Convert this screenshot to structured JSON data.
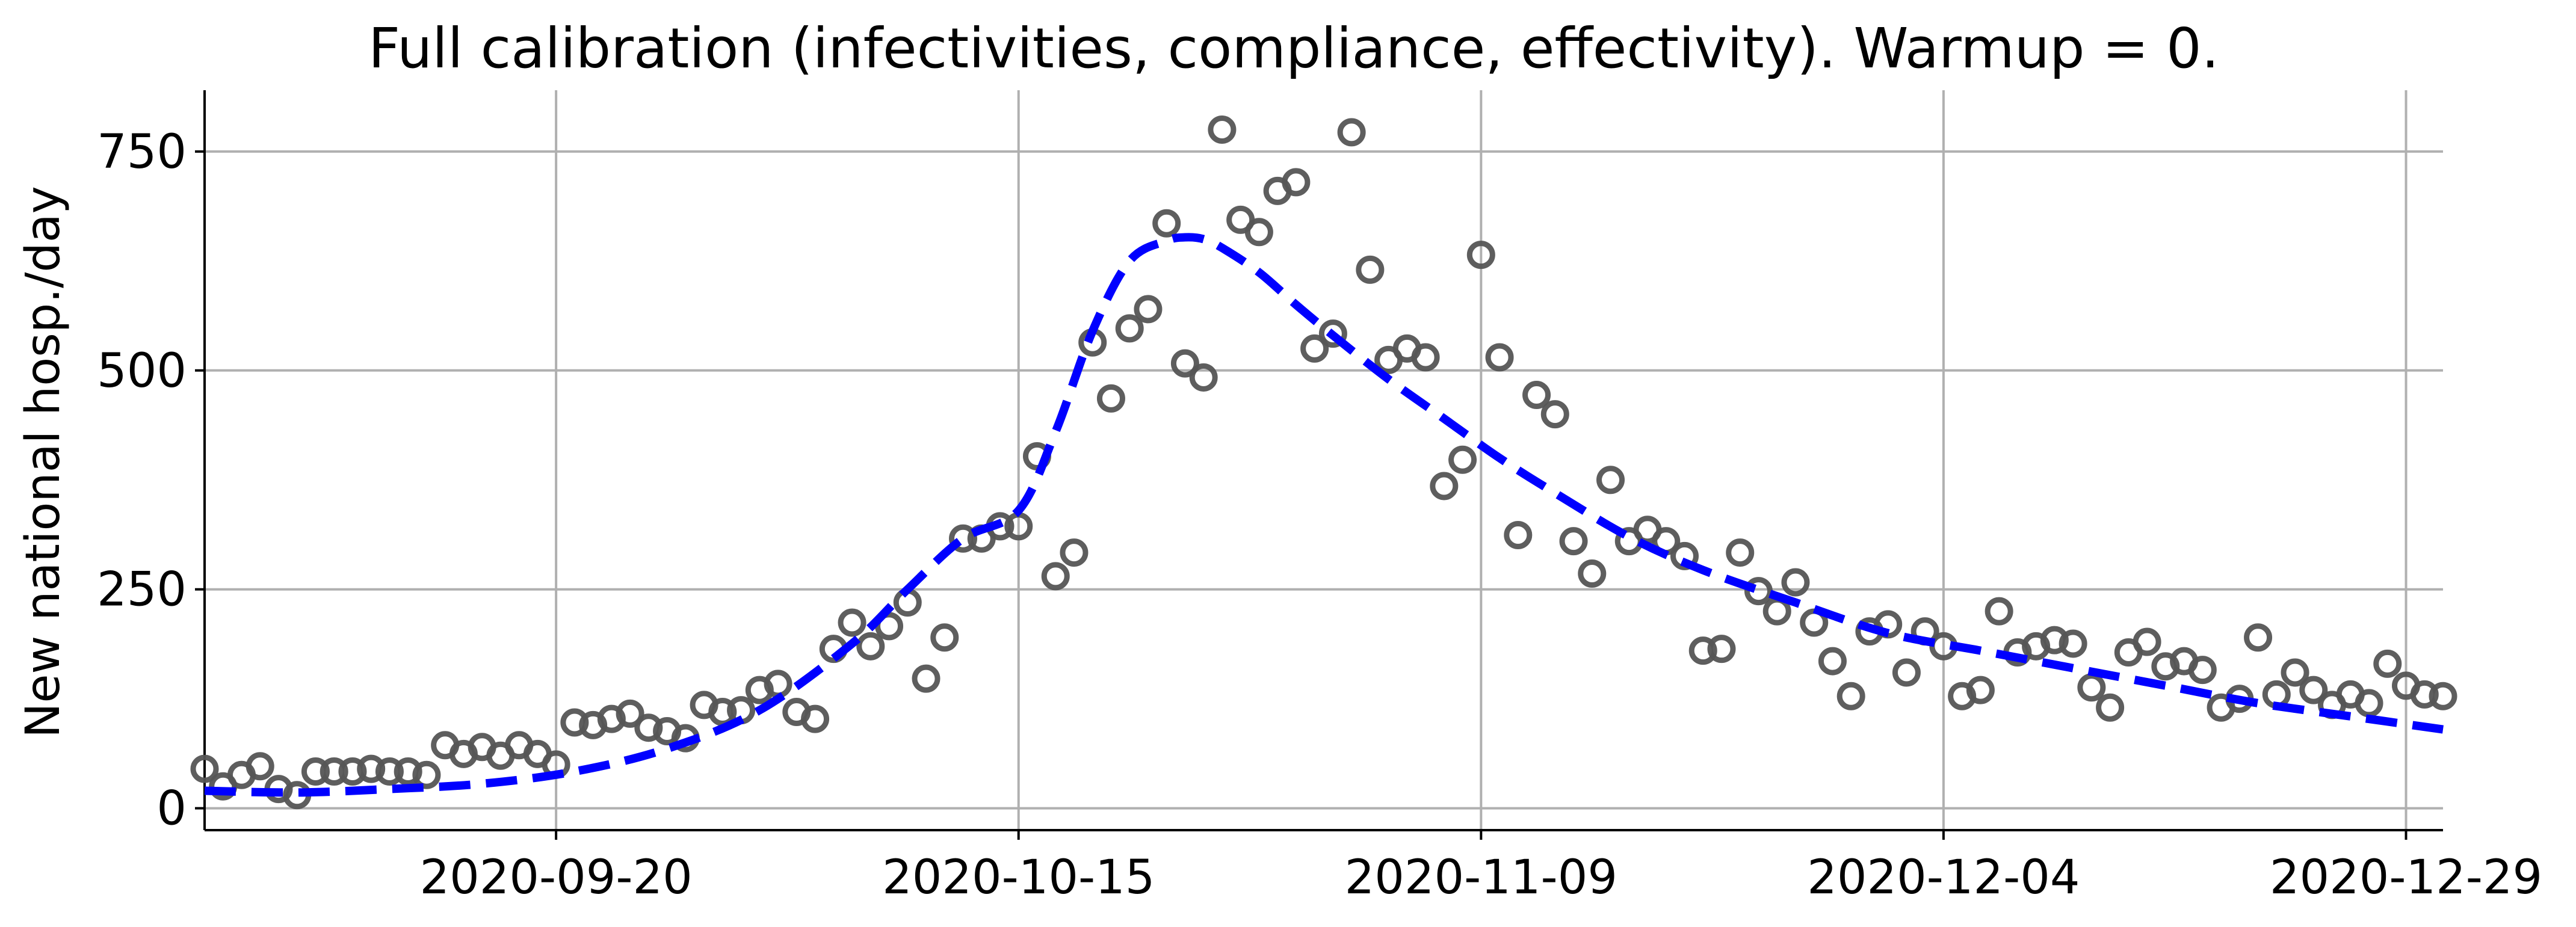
{
  "chart_data": {
    "type": "scatter",
    "title": "Full calibration (infectivities, compliance, effectivity). Warmup = 0.",
    "xlabel": "",
    "ylabel": "New national hosp./day",
    "x_range": [
      "2020-09-01",
      "2020-12-31"
    ],
    "ylim": [
      -25,
      820
    ],
    "x_ticks": [
      "2020-09-20",
      "2020-10-15",
      "2020-11-09",
      "2020-12-04",
      "2020-12-29"
    ],
    "y_ticks": [
      0,
      250,
      500,
      750
    ],
    "grid": true,
    "colors": {
      "observed": "#555555",
      "model": "#0000ff"
    },
    "series": [
      {
        "marker": "open-circle",
        "x": [
          "2020-09-01",
          "2020-09-02",
          "2020-09-03",
          "2020-09-04",
          "2020-09-05",
          "2020-09-06",
          "2020-09-07",
          "2020-09-08",
          "2020-09-09",
          "2020-09-10",
          "2020-09-11",
          "2020-09-12",
          "2020-09-13",
          "2020-09-14",
          "2020-09-15",
          "2020-09-16",
          "2020-09-17",
          "2020-09-18",
          "2020-09-19",
          "2020-09-20",
          "2020-09-21",
          "2020-09-22",
          "2020-09-23",
          "2020-09-24",
          "2020-09-25",
          "2020-09-26",
          "2020-09-27",
          "2020-09-28",
          "2020-09-29",
          "2020-09-30",
          "2020-10-01",
          "2020-10-02",
          "2020-10-03",
          "2020-10-04",
          "2020-10-05",
          "2020-10-06",
          "2020-10-07",
          "2020-10-08",
          "2020-10-09",
          "2020-10-10",
          "2020-10-11",
          "2020-10-12",
          "2020-10-13",
          "2020-10-14",
          "2020-10-15",
          "2020-10-16",
          "2020-10-17",
          "2020-10-18",
          "2020-10-19",
          "2020-10-20",
          "2020-10-21",
          "2020-10-22",
          "2020-10-23",
          "2020-10-24",
          "2020-10-25",
          "2020-10-26",
          "2020-10-27",
          "2020-10-28",
          "2020-10-29",
          "2020-10-30",
          "2020-10-31",
          "2020-11-01",
          "2020-11-02",
          "2020-11-03",
          "2020-11-04",
          "2020-11-05",
          "2020-11-06",
          "2020-11-07",
          "2020-11-08",
          "2020-11-09",
          "2020-11-10",
          "2020-11-11",
          "2020-11-12",
          "2020-11-13",
          "2020-11-14",
          "2020-11-15",
          "2020-11-16",
          "2020-11-17",
          "2020-11-18",
          "2020-11-19",
          "2020-11-20",
          "2020-11-21",
          "2020-11-22",
          "2020-11-23",
          "2020-11-24",
          "2020-11-25",
          "2020-11-26",
          "2020-11-27",
          "2020-11-28",
          "2020-11-29",
          "2020-11-30",
          "2020-12-01",
          "2020-12-02",
          "2020-12-03",
          "2020-12-04",
          "2020-12-05",
          "2020-12-06",
          "2020-12-07",
          "2020-12-08",
          "2020-12-09",
          "2020-12-10",
          "2020-12-11",
          "2020-12-12",
          "2020-12-13",
          "2020-12-14",
          "2020-12-15",
          "2020-12-16",
          "2020-12-17",
          "2020-12-18",
          "2020-12-19",
          "2020-12-20",
          "2020-12-21",
          "2020-12-22",
          "2020-12-23",
          "2020-12-24",
          "2020-12-25",
          "2020-12-26",
          "2020-12-27",
          "2020-12-28",
          "2020-12-29",
          "2020-12-30",
          "2020-12-31"
        ],
        "y": [
          45,
          25,
          38,
          48,
          22,
          15,
          42,
          42,
          42,
          45,
          42,
          42,
          38,
          72,
          62,
          70,
          60,
          72,
          62,
          50,
          98,
          95,
          102,
          108,
          92,
          88,
          80,
          118,
          110,
          112,
          135,
          142,
          110,
          102,
          182,
          212,
          185,
          208,
          235,
          148,
          195,
          308,
          308,
          322,
          322,
          402,
          265,
          292,
          532,
          468,
          548,
          570,
          668,
          508,
          492,
          775,
          672,
          658,
          705,
          715,
          525,
          542,
          772,
          615,
          512,
          525,
          515,
          368,
          398,
          632,
          515,
          312,
          472,
          450,
          305,
          268,
          375,
          305,
          318,
          305,
          288,
          180,
          182,
          292,
          248,
          225,
          258,
          212,
          168,
          128,
          202,
          210,
          155,
          202,
          185,
          128,
          135,
          225,
          178,
          185,
          192,
          188,
          138,
          115,
          178,
          190,
          162,
          168,
          158,
          115,
          125,
          195,
          130,
          155,
          135,
          118,
          130,
          120,
          165,
          140,
          130,
          128
        ]
      },
      {
        "line_style": "dashed",
        "x": [
          "2020-09-01",
          "2020-09-06",
          "2020-09-11",
          "2020-09-16",
          "2020-09-21",
          "2020-09-26",
          "2020-10-01",
          "2020-10-06",
          "2020-10-09",
          "2020-10-12",
          "2020-10-15",
          "2020-10-17",
          "2020-10-19",
          "2020-10-21",
          "2020-10-23",
          "2020-10-24",
          "2020-10-25",
          "2020-10-26",
          "2020-10-28",
          "2020-10-30",
          "2020-11-01",
          "2020-11-04",
          "2020-11-07",
          "2020-11-10",
          "2020-11-13",
          "2020-11-17",
          "2020-11-21",
          "2020-11-26",
          "2020-12-01",
          "2020-12-06",
          "2020-12-11",
          "2020-12-16",
          "2020-12-21",
          "2020-12-26",
          "2020-12-31"
        ],
        "y": [
          20,
          18,
          22,
          28,
          42,
          68,
          112,
          188,
          250,
          308,
          340,
          430,
          545,
          625,
          648,
          652,
          650,
          640,
          612,
          575,
          540,
          490,
          445,
          400,
          360,
          310,
          272,
          235,
          200,
          180,
          160,
          140,
          120,
          105,
          90
        ]
      }
    ]
  }
}
